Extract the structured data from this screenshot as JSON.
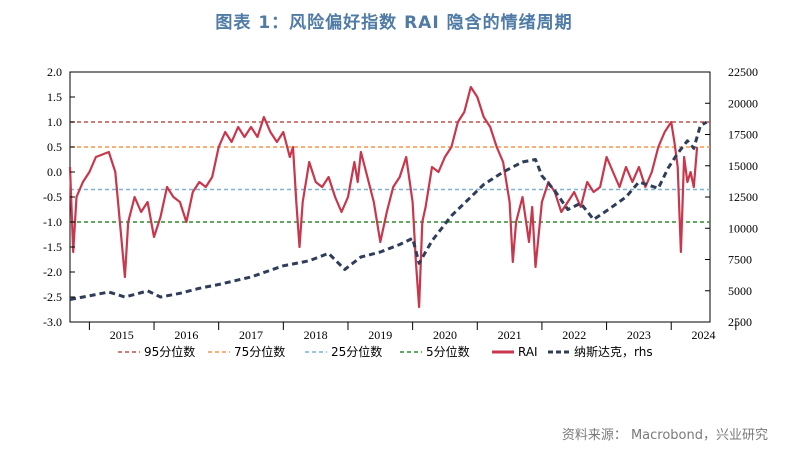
{
  "title": "图表 1：风险偏好指数 RAI 隐含的情绪周期",
  "source": "资料来源： Macrobond，兴业研究",
  "chart_data": {
    "type": "line",
    "title": "图表 1：风险偏好指数 RAI 隐含的情绪周期",
    "x_range": [
      2014.7,
      2024.6
    ],
    "y_left": {
      "range": [
        -3.0,
        2.0
      ],
      "ticks": [
        "2.0",
        "1.5",
        "1.0",
        "0.5",
        "0.0",
        "-0.5",
        "-1.0",
        "-1.5",
        "-2.0",
        "-2.5",
        "-3.0"
      ]
    },
    "y_right": {
      "range": [
        2500,
        22500
      ],
      "ticks": [
        "22500",
        "20000",
        "17500",
        "15000",
        "12500",
        "10000",
        "7500",
        "5000",
        "2500"
      ]
    },
    "x_ticks": [
      "2015",
      "2016",
      "2017",
      "2018",
      "2019",
      "2020",
      "2021",
      "2022",
      "2023",
      "2024"
    ],
    "reference_lines": [
      {
        "name": "95分位数",
        "value": 1.0,
        "color": "#c0504d"
      },
      {
        "name": "75分位数",
        "value": 0.5,
        "color": "#f79646"
      },
      {
        "name": "25分位数",
        "value": -0.35,
        "color": "#7fb2d6"
      },
      {
        "name": "5分位数",
        "value": -1.0,
        "color": "#2e8b2e"
      }
    ],
    "series": [
      {
        "name": "RAI",
        "axis": "left",
        "color": "#c8374b",
        "points": [
          [
            2014.7,
            0.1
          ],
          [
            2014.75,
            -1.6
          ],
          [
            2014.8,
            -0.5
          ],
          [
            2014.9,
            -0.2
          ],
          [
            2015.0,
            0.0
          ],
          [
            2015.1,
            0.3
          ],
          [
            2015.3,
            0.4
          ],
          [
            2015.4,
            0.0
          ],
          [
            2015.55,
            -2.1
          ],
          [
            2015.6,
            -1.0
          ],
          [
            2015.7,
            -0.5
          ],
          [
            2015.8,
            -0.8
          ],
          [
            2015.9,
            -0.6
          ],
          [
            2016.0,
            -1.3
          ],
          [
            2016.1,
            -0.9
          ],
          [
            2016.2,
            -0.3
          ],
          [
            2016.3,
            -0.5
          ],
          [
            2016.4,
            -0.6
          ],
          [
            2016.5,
            -1.0
          ],
          [
            2016.6,
            -0.4
          ],
          [
            2016.7,
            -0.2
          ],
          [
            2016.8,
            -0.3
          ],
          [
            2016.9,
            -0.1
          ],
          [
            2017.0,
            0.5
          ],
          [
            2017.1,
            0.8
          ],
          [
            2017.2,
            0.6
          ],
          [
            2017.3,
            0.9
          ],
          [
            2017.4,
            0.7
          ],
          [
            2017.5,
            0.9
          ],
          [
            2017.6,
            0.7
          ],
          [
            2017.7,
            1.1
          ],
          [
            2017.8,
            0.8
          ],
          [
            2017.9,
            0.6
          ],
          [
            2018.0,
            0.8
          ],
          [
            2018.1,
            0.3
          ],
          [
            2018.15,
            0.5
          ],
          [
            2018.2,
            -0.6
          ],
          [
            2018.25,
            -1.5
          ],
          [
            2018.3,
            -0.6
          ],
          [
            2018.4,
            0.2
          ],
          [
            2018.5,
            -0.2
          ],
          [
            2018.6,
            -0.3
          ],
          [
            2018.7,
            -0.1
          ],
          [
            2018.8,
            -0.5
          ],
          [
            2018.9,
            -0.8
          ],
          [
            2019.0,
            -0.5
          ],
          [
            2019.1,
            0.2
          ],
          [
            2019.15,
            -0.2
          ],
          [
            2019.2,
            0.4
          ],
          [
            2019.3,
            -0.1
          ],
          [
            2019.4,
            -0.6
          ],
          [
            2019.5,
            -1.4
          ],
          [
            2019.6,
            -0.8
          ],
          [
            2019.7,
            -0.3
          ],
          [
            2019.8,
            -0.1
          ],
          [
            2019.9,
            0.3
          ],
          [
            2020.0,
            -0.6
          ],
          [
            2020.05,
            -1.8
          ],
          [
            2020.1,
            -2.7
          ],
          [
            2020.15,
            -1.0
          ],
          [
            2020.2,
            -0.7
          ],
          [
            2020.3,
            0.1
          ],
          [
            2020.4,
            0.0
          ],
          [
            2020.5,
            0.3
          ],
          [
            2020.6,
            0.5
          ],
          [
            2020.7,
            1.0
          ],
          [
            2020.8,
            1.2
          ],
          [
            2020.9,
            1.7
          ],
          [
            2021.0,
            1.5
          ],
          [
            2021.1,
            1.1
          ],
          [
            2021.2,
            0.9
          ],
          [
            2021.3,
            0.5
          ],
          [
            2021.4,
            0.2
          ],
          [
            2021.5,
            -0.6
          ],
          [
            2021.55,
            -1.8
          ],
          [
            2021.6,
            -1.0
          ],
          [
            2021.7,
            -0.5
          ],
          [
            2021.8,
            -1.4
          ],
          [
            2021.85,
            -0.7
          ],
          [
            2021.9,
            -1.9
          ],
          [
            2022.0,
            -0.6
          ],
          [
            2022.1,
            -0.2
          ],
          [
            2022.2,
            -0.4
          ],
          [
            2022.3,
            -0.8
          ],
          [
            2022.4,
            -0.6
          ],
          [
            2022.5,
            -0.4
          ],
          [
            2022.6,
            -0.7
          ],
          [
            2022.7,
            -0.2
          ],
          [
            2022.8,
            -0.4
          ],
          [
            2022.9,
            -0.3
          ],
          [
            2023.0,
            0.3
          ],
          [
            2023.1,
            0.0
          ],
          [
            2023.2,
            -0.3
          ],
          [
            2023.3,
            0.1
          ],
          [
            2023.4,
            -0.2
          ],
          [
            2023.5,
            0.1
          ],
          [
            2023.6,
            -0.3
          ],
          [
            2023.7,
            0.0
          ],
          [
            2023.8,
            0.5
          ],
          [
            2023.9,
            0.8
          ],
          [
            2024.0,
            1.0
          ],
          [
            2024.05,
            0.6
          ],
          [
            2024.1,
            0.1
          ],
          [
            2024.15,
            -1.6
          ],
          [
            2024.2,
            0.3
          ],
          [
            2024.25,
            -0.2
          ],
          [
            2024.3,
            0.0
          ],
          [
            2024.35,
            -0.3
          ],
          [
            2024.4,
            0.5
          ]
        ]
      },
      {
        "name": "纳斯达克，rhs",
        "axis": "right",
        "color": "#2f3d5a",
        "points": [
          [
            2014.7,
            4300
          ],
          [
            2015.0,
            4600
          ],
          [
            2015.3,
            4900
          ],
          [
            2015.55,
            4500
          ],
          [
            2015.7,
            4700
          ],
          [
            2015.9,
            5000
          ],
          [
            2016.1,
            4500
          ],
          [
            2016.4,
            4800
          ],
          [
            2016.7,
            5200
          ],
          [
            2017.0,
            5500
          ],
          [
            2017.5,
            6100
          ],
          [
            2018.0,
            7000
          ],
          [
            2018.4,
            7400
          ],
          [
            2018.7,
            8000
          ],
          [
            2018.95,
            6700
          ],
          [
            2019.2,
            7700
          ],
          [
            2019.5,
            8100
          ],
          [
            2019.8,
            8700
          ],
          [
            2020.0,
            9200
          ],
          [
            2020.1,
            7200
          ],
          [
            2020.3,
            9000
          ],
          [
            2020.6,
            11000
          ],
          [
            2020.9,
            12500
          ],
          [
            2021.1,
            13500
          ],
          [
            2021.4,
            14500
          ],
          [
            2021.7,
            15300
          ],
          [
            2021.9,
            15500
          ],
          [
            2022.0,
            14200
          ],
          [
            2022.2,
            13000
          ],
          [
            2022.4,
            11500
          ],
          [
            2022.6,
            12000
          ],
          [
            2022.8,
            10700
          ],
          [
            2023.0,
            11400
          ],
          [
            2023.3,
            12500
          ],
          [
            2023.5,
            13700
          ],
          [
            2023.8,
            13200
          ],
          [
            2023.95,
            14800
          ],
          [
            2024.1,
            16000
          ],
          [
            2024.25,
            17000
          ],
          [
            2024.35,
            16400
          ],
          [
            2024.45,
            18200
          ],
          [
            2024.55,
            18500
          ]
        ]
      }
    ],
    "legend": [
      "95分位数",
      "75分位数",
      "25分位数",
      "5分位数",
      "RAI",
      "纳斯达克，rhs"
    ]
  }
}
